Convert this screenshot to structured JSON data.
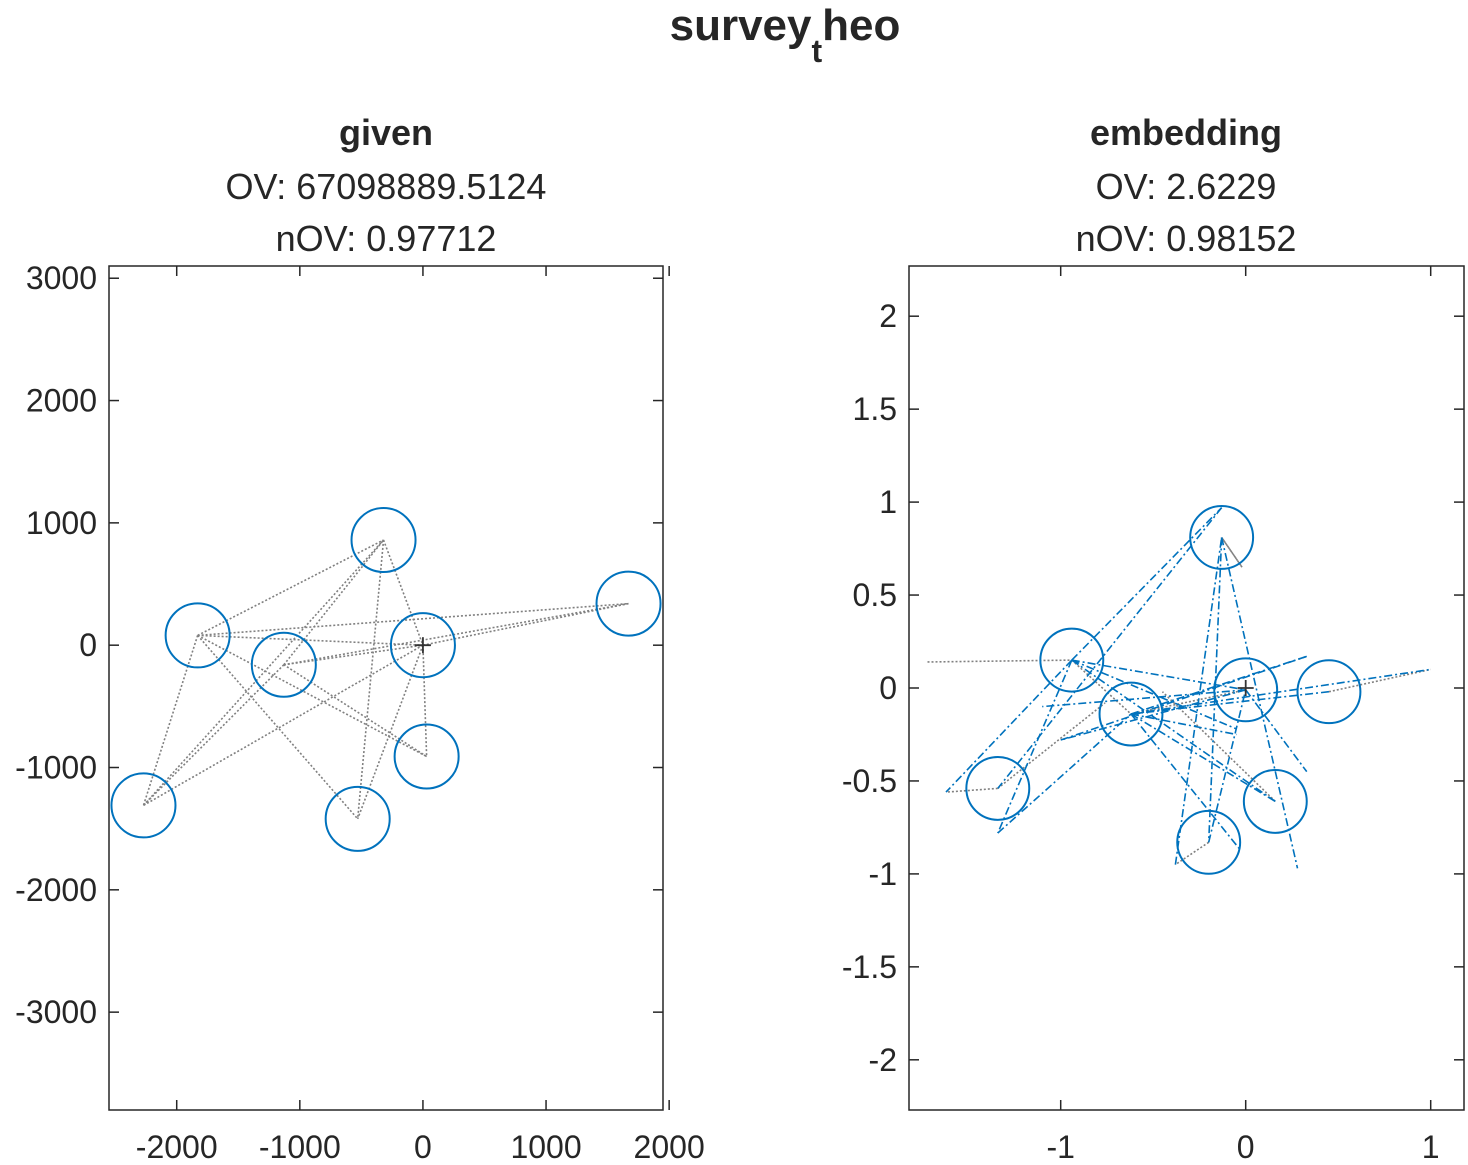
{
  "figure": {
    "suptitle_base": "survey",
    "suptitle_sub": "t",
    "suptitle_rest": "heo"
  },
  "colors": {
    "axes": "#262626",
    "circle": "#0072BD",
    "gray_link": "#808080",
    "blue_link": "#0072BD"
  },
  "chart_data": [
    {
      "type": "scatter",
      "title": "given",
      "subtitle_lines": [
        "OV: 67098889.5124",
        "nOV: 0.97712"
      ],
      "xlim": [
        -2550,
        1950
      ],
      "ylim": [
        -3800,
        3100
      ],
      "xticks": [
        -2000,
        -1000,
        0,
        1000,
        2000
      ],
      "xtick_labels": [
        "-2000",
        "-1000",
        "0",
        "1000",
        "2000"
      ],
      "yticks": [
        -3000,
        -2000,
        -1000,
        0,
        1000,
        2000,
        3000
      ],
      "ytick_labels": [
        "-3000",
        "-2000",
        "-1000",
        "0",
        "1000",
        "2000",
        "3000"
      ],
      "center": [
        0,
        0
      ],
      "points": [
        {
          "x": -1830,
          "y": 80
        },
        {
          "x": -1130,
          "y": -160
        },
        {
          "x": -320,
          "y": 860
        },
        {
          "x": 0,
          "y": 0
        },
        {
          "x": 1670,
          "y": 340
        },
        {
          "x": 30,
          "y": -910
        },
        {
          "x": -530,
          "y": -1420
        },
        {
          "x": -2270,
          "y": -1310
        }
      ],
      "radius": 260,
      "gray_links": [
        [
          -1830,
          80,
          -320,
          860
        ],
        [
          -1830,
          80,
          1670,
          340
        ],
        [
          -1830,
          80,
          30,
          -910
        ],
        [
          -1830,
          80,
          -530,
          -1420
        ],
        [
          -1830,
          80,
          -2270,
          -1310
        ],
        [
          -1830,
          80,
          0,
          0
        ],
        [
          -1130,
          -160,
          -320,
          860
        ],
        [
          -1130,
          -160,
          1670,
          340
        ],
        [
          -1130,
          -160,
          -2270,
          -1310
        ],
        [
          -1130,
          -160,
          0,
          0
        ],
        [
          -320,
          860,
          0,
          0
        ],
        [
          -320,
          860,
          -2270,
          -1310
        ],
        [
          -320,
          860,
          -530,
          -1420
        ],
        [
          0,
          0,
          30,
          -910
        ],
        [
          0,
          0,
          -530,
          -1420
        ],
        [
          0,
          0,
          -2270,
          -1310
        ],
        [
          0,
          0,
          1670,
          340
        ],
        [
          30,
          -910,
          -1130,
          -160
        ]
      ],
      "blue_links": []
    },
    {
      "type": "scatter",
      "title": "embedding",
      "subtitle_lines": [
        "OV: 2.6229",
        "nOV: 0.98152"
      ],
      "xlim": [
        -1.82,
        1.18
      ],
      "ylim": [
        -2.27,
        2.27
      ],
      "xticks": [
        -1,
        0,
        1
      ],
      "xtick_labels": [
        "-1",
        "0",
        "1"
      ],
      "yticks": [
        -2,
        -1.5,
        -1,
        -0.5,
        0,
        0.5,
        1,
        1.5,
        2
      ],
      "ytick_labels": [
        "-2",
        "-1.5",
        "-1",
        "-0.5",
        "0",
        "0.5",
        "1",
        "1.5",
        "2"
      ],
      "center": [
        0,
        0
      ],
      "points": [
        {
          "x": -0.13,
          "y": 0.81
        },
        {
          "x": -0.94,
          "y": 0.15
        },
        {
          "x": -0.62,
          "y": -0.14
        },
        {
          "x": 0.0,
          "y": -0.01
        },
        {
          "x": 0.45,
          "y": -0.02
        },
        {
          "x": 0.16,
          "y": -0.61
        },
        {
          "x": -0.2,
          "y": -0.83
        },
        {
          "x": -1.34,
          "y": -0.54
        }
      ],
      "radius": 0.17,
      "gray_links": [
        [
          -1.72,
          0.14,
          -0.94,
          0.15
        ],
        [
          -0.94,
          0.15,
          -0.62,
          -0.14
        ],
        [
          -0.13,
          0.81,
          -0.02,
          0.65
        ],
        [
          -0.02,
          0.65,
          -0.13,
          0.81
        ],
        [
          -1.34,
          -0.54,
          -1.62,
          -0.56
        ],
        [
          -1.34,
          -0.54,
          -0.76,
          -0.08
        ],
        [
          -0.2,
          -0.83,
          -0.38,
          -0.95
        ],
        [
          0.16,
          -0.61,
          -0.45,
          -0.02
        ],
        [
          0.0,
          -0.01,
          -0.62,
          -0.14
        ],
        [
          0.45,
          -0.02,
          1.0,
          0.1
        ]
      ],
      "blue_links": [
        [
          -0.94,
          0.15,
          -0.13,
          0.97
        ],
        [
          -0.13,
          0.97,
          -1.34,
          -0.54
        ],
        [
          -0.94,
          0.15,
          -1.62,
          -0.56
        ],
        [
          -0.94,
          0.15,
          0.16,
          -0.61
        ],
        [
          -0.94,
          0.15,
          0.0,
          -0.01
        ],
        [
          -0.94,
          0.15,
          -1.34,
          -0.78
        ],
        [
          -0.62,
          -0.14,
          0.16,
          -0.61
        ],
        [
          -0.62,
          -0.14,
          -0.03,
          -0.87
        ],
        [
          -0.62,
          -0.14,
          0.33,
          0.17
        ],
        [
          -0.62,
          -0.14,
          1.0,
          0.1
        ],
        [
          -0.13,
          0.81,
          0.28,
          -0.97
        ],
        [
          -0.13,
          0.81,
          -0.2,
          -0.83
        ],
        [
          0.0,
          -0.01,
          -1.0,
          -0.28
        ],
        [
          0.0,
          -0.01,
          -1.1,
          -0.1
        ],
        [
          0.0,
          -0.01,
          0.33,
          -0.45
        ],
        [
          0.45,
          -0.02,
          -0.62,
          -0.14
        ],
        [
          -0.2,
          -0.83,
          0.0,
          -0.01
        ],
        [
          -1.34,
          -0.78,
          -0.62,
          -0.14
        ],
        [
          -0.38,
          -0.95,
          -0.13,
          0.81
        ],
        [
          -0.94,
          0.15,
          -0.05,
          -0.22
        ],
        [
          -0.62,
          -0.14,
          -0.05,
          -0.25
        ],
        [
          -1.0,
          -0.28,
          0.33,
          0.17
        ]
      ]
    }
  ]
}
